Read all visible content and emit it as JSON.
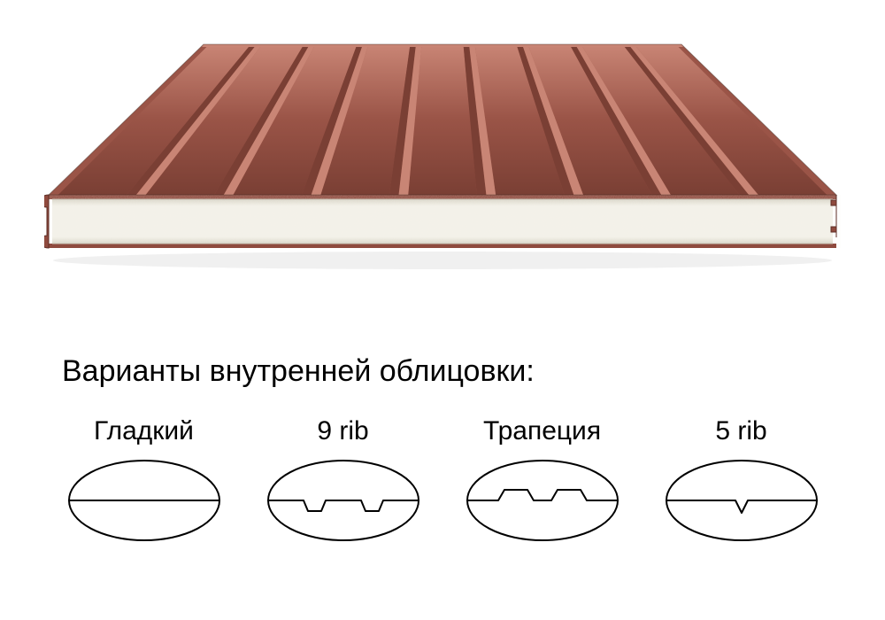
{
  "panel": {
    "type": "product-3d-panel",
    "top_surface_color": "#9a5447",
    "top_highlight_color": "#c98575",
    "top_shadow_color": "#7a3f34",
    "rib_count": 9,
    "core_color": "#f3f1e8",
    "core_noise_color": "#e6e2d6",
    "edge_metal_color": "#8f4a3e",
    "edge_metal_dark": "#5e2f27",
    "outline_color": "#3a2a24",
    "background": "#ffffff"
  },
  "section": {
    "title": "Варианты внутренней облицовки:",
    "title_fontsize": 34
  },
  "profiles": {
    "ellipse_stroke": "#000000",
    "ellipse_stroke_width": 2,
    "line_stroke": "#000000",
    "line_stroke_width": 2,
    "label_fontsize": 30,
    "items": [
      {
        "id": "flat",
        "label": "Гладкий",
        "kind": "flat"
      },
      {
        "id": "rib9",
        "label": "9 rib",
        "kind": "notch2"
      },
      {
        "id": "trapezoid",
        "label": "Трапеция",
        "kind": "trap2"
      },
      {
        "id": "rib5",
        "label": "5 rib",
        "kind": "vnotch1"
      }
    ]
  }
}
